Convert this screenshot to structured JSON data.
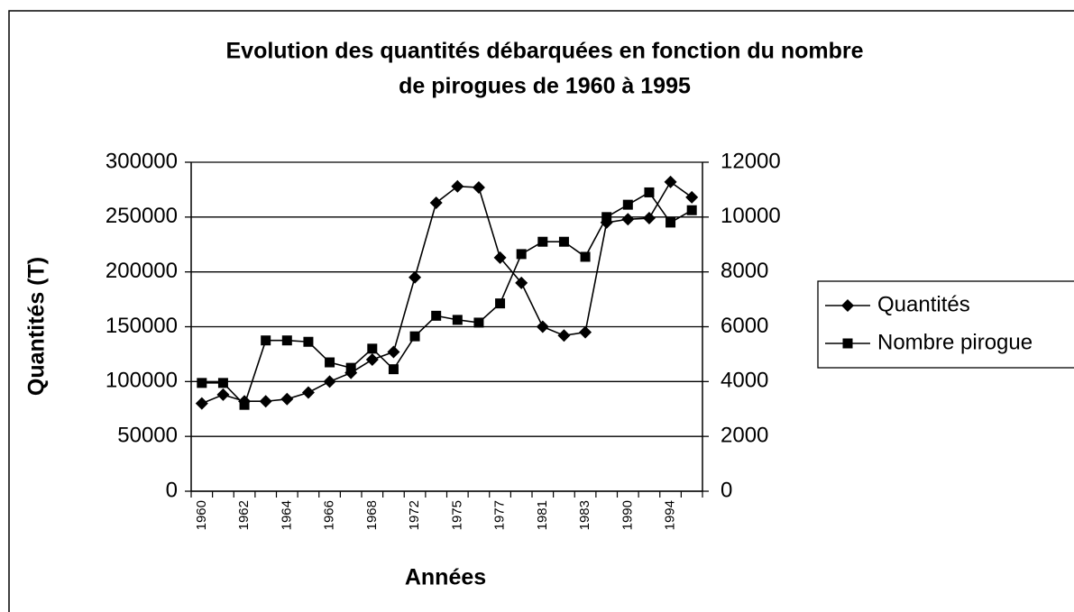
{
  "chart_data": {
    "type": "line",
    "title": [
      "Evolution des quantités débarquées en fonction du nombre",
      "de pirogues de 1960 à 1995"
    ],
    "x_label": "Années",
    "y_label": "Quantités (T)",
    "categories": [
      "1960",
      null,
      "1962",
      null,
      "1964",
      null,
      "1966",
      null,
      "1968",
      null,
      "1972",
      null,
      "1975",
      null,
      "1977",
      null,
      "1981",
      null,
      "1983",
      null,
      "1990",
      null,
      "1994",
      null
    ],
    "series": [
      {
        "name": "Quantités",
        "color": "#000000",
        "marker": "diamond",
        "values": [
          80000,
          88000,
          82000,
          82000,
          84000,
          90000,
          100000,
          108000,
          120000,
          127000,
          195000,
          263000,
          278000,
          277000,
          213000,
          190000,
          150000,
          142000,
          145000,
          245000,
          248000,
          249000,
          282000,
          268000
        ]
      },
      {
        "name": "Nombre pirogue",
        "color": "#000000",
        "marker": "square",
        "axis": "y2",
        "values": [
          3950,
          3950,
          3150,
          5500,
          5500,
          5450,
          4700,
          4500,
          5200,
          4450,
          5650,
          6400,
          6250,
          6150,
          6850,
          8650,
          9100,
          9100,
          8550,
          10000,
          10450,
          10900,
          9800,
          10250
        ]
      }
    ],
    "ylim": [
      0,
      300000
    ],
    "yticks": [
      0,
      50000,
      100000,
      150000,
      200000,
      250000,
      300000
    ],
    "y2lim": [
      0,
      12000
    ],
    "y2ticks": [
      0,
      2000,
      4000,
      6000,
      8000,
      10000,
      12000
    ],
    "grid": true,
    "legend": "right"
  }
}
